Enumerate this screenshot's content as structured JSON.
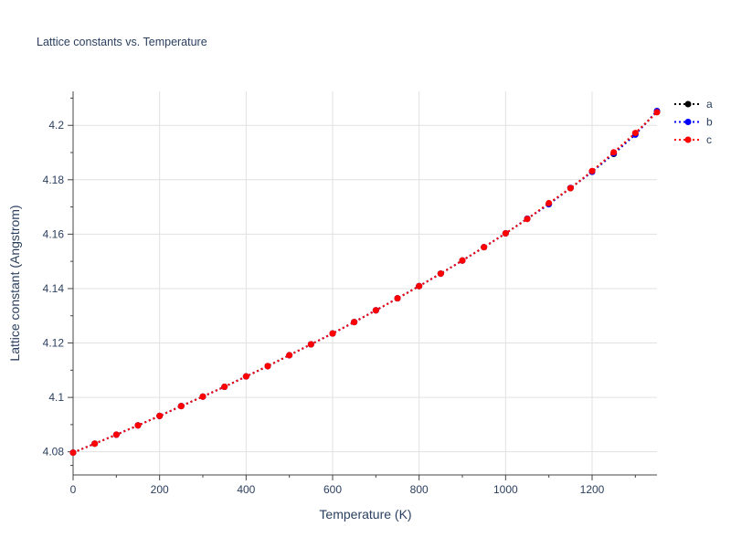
{
  "chart_data": {
    "type": "line",
    "title": "Lattice constants vs. Temperature",
    "xlabel": "Temperature (K)",
    "ylabel": "Lattice constant (Angstrom)",
    "xlim": [
      0,
      1350
    ],
    "ylim": [
      4.0715,
      4.2125
    ],
    "x_ticks": [
      0,
      200,
      400,
      600,
      800,
      1000,
      1200
    ],
    "x_tick_labels": [
      "0",
      "200",
      "400",
      "600",
      "800",
      "1000",
      "1200"
    ],
    "y_ticks": [
      4.08,
      4.1,
      4.12,
      4.14,
      4.16,
      4.18,
      4.2
    ],
    "y_tick_labels": [
      "4.08",
      "4.1",
      "4.12",
      "4.14",
      "4.16",
      "4.18",
      "4.2"
    ],
    "grid": true,
    "legend_position": "top-right",
    "x": [
      0,
      50,
      100,
      150,
      200,
      250,
      300,
      350,
      400,
      450,
      500,
      550,
      600,
      650,
      700,
      750,
      800,
      850,
      900,
      950,
      1000,
      1050,
      1100,
      1150,
      1200,
      1250,
      1300,
      1350
    ],
    "series": [
      {
        "name": "a",
        "color": "#000000",
        "line_style": "dotted",
        "values": [
          4.0797,
          4.083,
          4.0863,
          4.0897,
          4.0932,
          4.0968,
          4.1003,
          4.1039,
          4.1077,
          4.1115,
          4.1155,
          4.1195,
          4.1235,
          4.1277,
          4.132,
          4.1364,
          4.1409,
          4.1455,
          4.1503,
          4.1552,
          4.1603,
          4.1656,
          4.1711,
          4.1769,
          4.183,
          4.1895,
          4.1968,
          4.205
        ]
      },
      {
        "name": "b",
        "color": "#0000ff",
        "line_style": "dotted",
        "values": [
          4.0797,
          4.083,
          4.0863,
          4.0897,
          4.0932,
          4.0968,
          4.1003,
          4.1039,
          4.1077,
          4.1115,
          4.1155,
          4.1195,
          4.1235,
          4.1277,
          4.132,
          4.1364,
          4.1409,
          4.1455,
          4.1503,
          4.1552,
          4.1603,
          4.1657,
          4.171,
          4.177,
          4.1829,
          4.1897,
          4.1966,
          4.2053
        ]
      },
      {
        "name": "c",
        "color": "#ff0000",
        "line_style": "dotted",
        "values": [
          4.0797,
          4.083,
          4.0863,
          4.0897,
          4.0932,
          4.0968,
          4.1003,
          4.1039,
          4.1077,
          4.1115,
          4.1155,
          4.1195,
          4.1235,
          4.1277,
          4.132,
          4.1364,
          4.1409,
          4.1455,
          4.1503,
          4.1552,
          4.1603,
          4.1656,
          4.1714,
          4.1769,
          4.1832,
          4.1901,
          4.1972,
          4.2048
        ]
      }
    ]
  }
}
